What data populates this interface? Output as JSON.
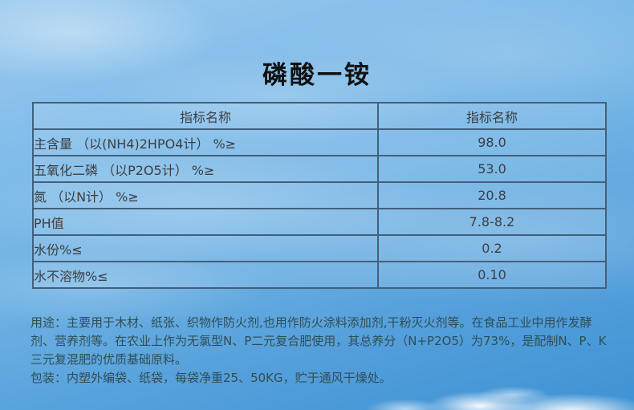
{
  "page_title": "磷酸一铵",
  "spec_table": {
    "headers": [
      "指标名称",
      "指标名称"
    ],
    "rows": [
      {
        "label": "主含量 （以(NH4)2HPO4计） %≥",
        "value": "98.0"
      },
      {
        "label": "五氧化二磷 （以P2O5计） %≥",
        "value": "53.0"
      },
      {
        "label": "氮 （以N计） %≥",
        "value": "20.8"
      },
      {
        "label": "PH值",
        "value": "7.8-8.2"
      },
      {
        "label": "水份%≤",
        "value": "0.2"
      },
      {
        "label": "水不溶物%≤",
        "value": "0.10"
      }
    ]
  },
  "description": {
    "usage": "用途：主要用于木材、纸张、织物作防火剂,也用作防火涂料添加剂,干粉灭火剂等。在食品工业中用作发酵剂、营养剂等。在农业上作为无氯型N、P二元复合肥使用，其总养分（N+P2O5）为73%，是配制N、P、K三元复混肥的优质基础原料。",
    "packaging": "包装：内塑外编袋、纸袋，每袋净重25、50KG，贮于通风干燥处。"
  },
  "colors": {
    "table_border": "#41607c",
    "table_text": "#3b3f44",
    "title_text": "#111111",
    "description_text": "#2f4e55",
    "sky_top": "#9ccaee",
    "sky_bottom": "#3e92d4"
  }
}
